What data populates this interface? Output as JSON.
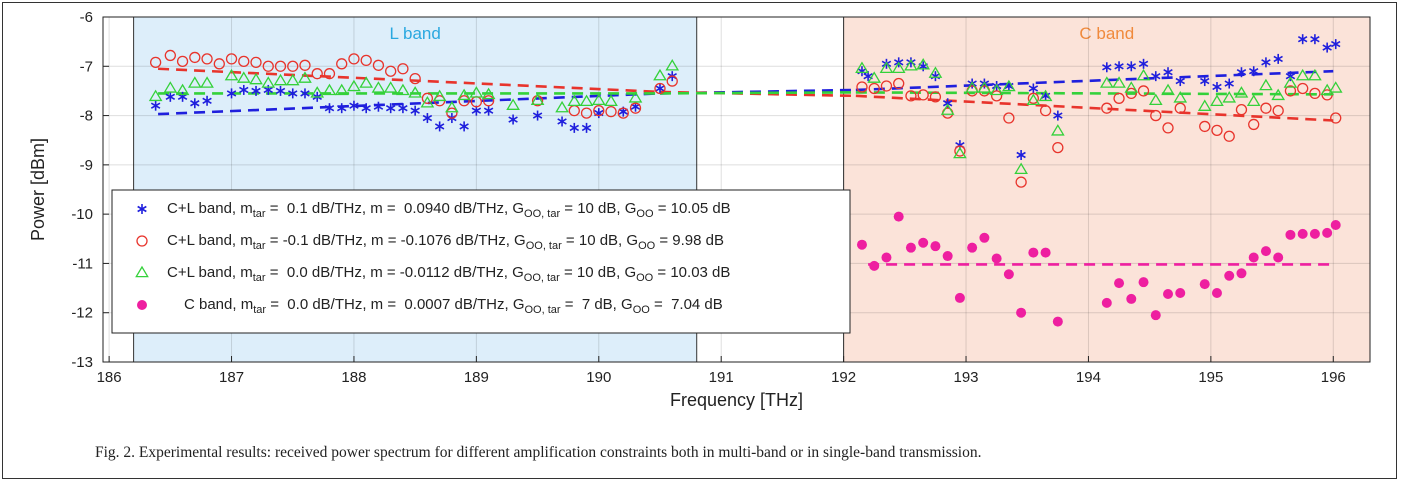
{
  "caption": "Fig. 2. Experimental results: received power spectrum for different amplification constraints both in multi-band or in single-band transmission.",
  "chart_data": {
    "type": "scatter",
    "xlabel": "Frequency [THz]",
    "ylabel": "Power [dBm]",
    "xlim": [
      185.95,
      196.3
    ],
    "ylim": [
      -13,
      -6
    ],
    "xticks": [
      186,
      187,
      188,
      189,
      190,
      191,
      192,
      193,
      194,
      195,
      196
    ],
    "yticks": [
      -13,
      -12,
      -11,
      -10,
      -9,
      -8,
      -7,
      -6
    ],
    "grid": true,
    "legend_position": "center-left",
    "colors": {
      "blue": "#1f1fdd",
      "red": "#e8342c",
      "green": "#34d13a",
      "magenta": "#ee1fa0",
      "l_band_fill": "#ddeefa",
      "c_band_fill": "#fbe3d9"
    },
    "bands": [
      {
        "label": "L band",
        "x": [
          186.2,
          190.8
        ],
        "color": "#2aa8e0"
      },
      {
        "label": "C band",
        "x": [
          192.0,
          196.3
        ],
        "color": "#f08a3c"
      }
    ],
    "series": [
      {
        "legend": [
          "C+L band, m",
          "tar",
          " =  0.1 dB/THz, m =  0.0940 dB/THz, G",
          "OO, tar",
          " = 10 dB, G",
          "OO",
          " = 10.05 dB"
        ],
        "marker": "asterisk",
        "color": "#1f1fdd",
        "fit": [
          [
            186.4,
            -7.97
          ],
          [
            190.5,
            -7.55
          ],
          [
            192.1,
            -7.48
          ],
          [
            196.0,
            -7.1
          ]
        ],
        "points": [
          [
            186.38,
            -7.8
          ],
          [
            186.5,
            -7.62
          ],
          [
            186.6,
            -7.62
          ],
          [
            186.7,
            -7.75
          ],
          [
            186.8,
            -7.7
          ],
          [
            187.0,
            -7.55
          ],
          [
            187.1,
            -7.48
          ],
          [
            187.2,
            -7.5
          ],
          [
            187.3,
            -7.48
          ],
          [
            187.4,
            -7.5
          ],
          [
            187.5,
            -7.55
          ],
          [
            187.6,
            -7.55
          ],
          [
            187.7,
            -7.62
          ],
          [
            187.8,
            -7.85
          ],
          [
            187.9,
            -7.85
          ],
          [
            188.0,
            -7.8
          ],
          [
            188.1,
            -7.85
          ],
          [
            188.2,
            -7.82
          ],
          [
            188.3,
            -7.85
          ],
          [
            188.4,
            -7.85
          ],
          [
            188.5,
            -7.9
          ],
          [
            188.6,
            -8.05
          ],
          [
            188.7,
            -8.22
          ],
          [
            188.8,
            -8.05
          ],
          [
            188.9,
            -8.22
          ],
          [
            189.0,
            -7.9
          ],
          [
            189.1,
            -7.9
          ],
          [
            189.3,
            -8.08
          ],
          [
            189.5,
            -8.0
          ],
          [
            189.7,
            -8.12
          ],
          [
            189.8,
            -8.25
          ],
          [
            189.9,
            -8.25
          ],
          [
            190.0,
            -7.95
          ],
          [
            190.2,
            -7.92
          ],
          [
            190.3,
            -7.82
          ],
          [
            190.5,
            -7.45
          ],
          [
            190.6,
            -7.2
          ],
          [
            192.15,
            -7.1
          ],
          [
            192.2,
            -7.2
          ],
          [
            192.35,
            -6.95
          ],
          [
            192.45,
            -6.92
          ],
          [
            192.55,
            -6.92
          ],
          [
            192.65,
            -7.0
          ],
          [
            192.75,
            -7.2
          ],
          [
            192.85,
            -7.75
          ],
          [
            192.95,
            -8.6
          ],
          [
            193.05,
            -7.35
          ],
          [
            193.15,
            -7.35
          ],
          [
            193.25,
            -7.4
          ],
          [
            193.35,
            -7.4
          ],
          [
            193.45,
            -8.8
          ],
          [
            193.55,
            -7.45
          ],
          [
            193.65,
            -7.6
          ],
          [
            193.75,
            -8.0
          ],
          [
            194.15,
            -7.02
          ],
          [
            194.25,
            -7.0
          ],
          [
            194.35,
            -7.0
          ],
          [
            194.45,
            -6.95
          ],
          [
            194.55,
            -7.2
          ],
          [
            194.65,
            -7.12
          ],
          [
            194.75,
            -7.3
          ],
          [
            194.95,
            -7.3
          ],
          [
            195.05,
            -7.42
          ],
          [
            195.15,
            -7.35
          ],
          [
            195.25,
            -7.12
          ],
          [
            195.35,
            -7.1
          ],
          [
            195.45,
            -6.92
          ],
          [
            195.55,
            -6.85
          ],
          [
            195.65,
            -7.2
          ],
          [
            195.75,
            -6.45
          ],
          [
            195.85,
            -6.45
          ],
          [
            195.95,
            -6.62
          ],
          [
            196.02,
            -6.55
          ]
        ]
      },
      {
        "legend": [
          "C+L band, m",
          "tar",
          " = -0.1 dB/THz, m = -0.1076 dB/THz, G",
          "OO, tar",
          " = 10 dB, G",
          "OO",
          " = 9.98 dB"
        ],
        "marker": "circle",
        "color": "#e8342c",
        "fit": [
          [
            186.4,
            -7.05
          ],
          [
            190.5,
            -7.52
          ],
          [
            192.1,
            -7.6
          ],
          [
            196.0,
            -8.1
          ]
        ],
        "points": [
          [
            186.38,
            -6.92
          ],
          [
            186.5,
            -6.78
          ],
          [
            186.6,
            -6.9
          ],
          [
            186.7,
            -6.82
          ],
          [
            186.8,
            -6.85
          ],
          [
            186.9,
            -6.95
          ],
          [
            187.0,
            -6.85
          ],
          [
            187.1,
            -6.9
          ],
          [
            187.2,
            -6.92
          ],
          [
            187.3,
            -7.0
          ],
          [
            187.4,
            -7.0
          ],
          [
            187.5,
            -7.0
          ],
          [
            187.6,
            -6.98
          ],
          [
            187.7,
            -7.15
          ],
          [
            187.8,
            -7.15
          ],
          [
            187.9,
            -6.95
          ],
          [
            188.0,
            -6.85
          ],
          [
            188.1,
            -6.88
          ],
          [
            188.2,
            -6.98
          ],
          [
            188.3,
            -7.1
          ],
          [
            188.4,
            -7.05
          ],
          [
            188.5,
            -7.25
          ],
          [
            188.6,
            -7.65
          ],
          [
            188.7,
            -7.7
          ],
          [
            188.8,
            -7.95
          ],
          [
            188.9,
            -7.7
          ],
          [
            189.0,
            -7.72
          ],
          [
            189.1,
            -7.7
          ],
          [
            189.5,
            -7.7
          ],
          [
            189.8,
            -7.9
          ],
          [
            189.9,
            -7.95
          ],
          [
            190.0,
            -7.9
          ],
          [
            190.1,
            -7.92
          ],
          [
            190.2,
            -7.95
          ],
          [
            190.3,
            -7.85
          ],
          [
            190.5,
            -7.45
          ],
          [
            190.6,
            -7.3
          ],
          [
            192.15,
            -7.42
          ],
          [
            192.25,
            -7.45
          ],
          [
            192.35,
            -7.4
          ],
          [
            192.45,
            -7.35
          ],
          [
            192.55,
            -7.6
          ],
          [
            192.65,
            -7.58
          ],
          [
            192.75,
            -7.62
          ],
          [
            192.85,
            -7.95
          ],
          [
            192.95,
            -8.72
          ],
          [
            193.05,
            -7.5
          ],
          [
            193.15,
            -7.5
          ],
          [
            193.25,
            -7.6
          ],
          [
            193.35,
            -8.05
          ],
          [
            193.45,
            -9.35
          ],
          [
            193.55,
            -7.65
          ],
          [
            193.65,
            -7.9
          ],
          [
            193.75,
            -8.65
          ],
          [
            194.15,
            -7.85
          ],
          [
            194.25,
            -7.65
          ],
          [
            194.35,
            -7.55
          ],
          [
            194.45,
            -7.5
          ],
          [
            194.55,
            -8.0
          ],
          [
            194.65,
            -8.25
          ],
          [
            194.75,
            -7.85
          ],
          [
            194.95,
            -8.22
          ],
          [
            195.05,
            -8.3
          ],
          [
            195.15,
            -8.42
          ],
          [
            195.25,
            -7.88
          ],
          [
            195.35,
            -8.18
          ],
          [
            195.45,
            -7.85
          ],
          [
            195.55,
            -7.9
          ],
          [
            195.65,
            -7.5
          ],
          [
            195.75,
            -7.45
          ],
          [
            195.85,
            -7.55
          ],
          [
            195.95,
            -7.58
          ],
          [
            196.02,
            -8.05
          ]
        ]
      },
      {
        "legend": [
          "C+L band, m",
          "tar",
          " =  0.0 dB/THz, m = -0.0112 dB/THz, G",
          "OO, tar",
          " = 10 dB, G",
          "OO",
          " = 10.03 dB"
        ],
        "marker": "triangle",
        "color": "#34d13a",
        "fit": [
          [
            186.4,
            -7.55
          ],
          [
            190.5,
            -7.55
          ],
          [
            192.1,
            -7.53
          ],
          [
            196.0,
            -7.57
          ]
        ],
        "points": [
          [
            186.38,
            -7.62
          ],
          [
            186.5,
            -7.45
          ],
          [
            186.6,
            -7.5
          ],
          [
            186.7,
            -7.35
          ],
          [
            186.8,
            -7.35
          ],
          [
            187.0,
            -7.2
          ],
          [
            187.1,
            -7.25
          ],
          [
            187.2,
            -7.28
          ],
          [
            187.3,
            -7.35
          ],
          [
            187.4,
            -7.3
          ],
          [
            187.5,
            -7.3
          ],
          [
            187.6,
            -7.25
          ],
          [
            187.7,
            -7.55
          ],
          [
            187.8,
            -7.5
          ],
          [
            187.9,
            -7.5
          ],
          [
            188.0,
            -7.42
          ],
          [
            188.1,
            -7.35
          ],
          [
            188.2,
            -7.45
          ],
          [
            188.3,
            -7.45
          ],
          [
            188.4,
            -7.5
          ],
          [
            188.5,
            -7.55
          ],
          [
            188.6,
            -7.75
          ],
          [
            188.7,
            -7.62
          ],
          [
            188.8,
            -7.85
          ],
          [
            188.9,
            -7.6
          ],
          [
            189.0,
            -7.55
          ],
          [
            189.1,
            -7.58
          ],
          [
            189.3,
            -7.8
          ],
          [
            189.5,
            -7.7
          ],
          [
            189.7,
            -7.85
          ],
          [
            189.8,
            -7.72
          ],
          [
            189.9,
            -7.72
          ],
          [
            190.0,
            -7.7
          ],
          [
            190.1,
            -7.72
          ],
          [
            190.3,
            -7.65
          ],
          [
            190.5,
            -7.2
          ],
          [
            190.6,
            -7.0
          ],
          [
            192.15,
            -7.05
          ],
          [
            192.25,
            -7.25
          ],
          [
            192.35,
            -7.05
          ],
          [
            192.45,
            -7.05
          ],
          [
            192.55,
            -7.0
          ],
          [
            192.65,
            -6.98
          ],
          [
            192.75,
            -7.15
          ],
          [
            192.85,
            -7.9
          ],
          [
            192.95,
            -8.78
          ],
          [
            193.05,
            -7.45
          ],
          [
            193.15,
            -7.45
          ],
          [
            193.25,
            -7.5
          ],
          [
            193.35,
            -7.42
          ],
          [
            193.45,
            -9.1
          ],
          [
            193.55,
            -7.7
          ],
          [
            193.65,
            -7.62
          ],
          [
            193.75,
            -8.32
          ],
          [
            194.15,
            -7.35
          ],
          [
            194.25,
            -7.35
          ],
          [
            194.35,
            -7.45
          ],
          [
            194.45,
            -7.2
          ],
          [
            194.55,
            -7.7
          ],
          [
            194.65,
            -7.5
          ],
          [
            194.75,
            -7.65
          ],
          [
            194.95,
            -7.82
          ],
          [
            195.05,
            -7.72
          ],
          [
            195.15,
            -7.65
          ],
          [
            195.25,
            -7.55
          ],
          [
            195.35,
            -7.72
          ],
          [
            195.45,
            -7.4
          ],
          [
            195.55,
            -7.6
          ],
          [
            195.65,
            -7.35
          ],
          [
            195.75,
            -7.2
          ],
          [
            195.85,
            -7.2
          ],
          [
            195.95,
            -7.5
          ],
          [
            196.02,
            -7.45
          ]
        ]
      },
      {
        "legend": [
          "C band, m",
          "tar",
          " =  0.0 dB/THz, m =  0.0007 dB/THz, G",
          "OO, tar",
          " =  7 dB, G",
          "OO",
          " =  7.04 dB"
        ],
        "marker": "dot",
        "color": "#ee1fa0",
        "fit": [
          [
            192.2,
            -11.02
          ],
          [
            196.0,
            -11.02
          ]
        ],
        "points": [
          [
            192.15,
            -10.62
          ],
          [
            192.25,
            -11.05
          ],
          [
            192.35,
            -10.88
          ],
          [
            192.45,
            -10.05
          ],
          [
            192.55,
            -10.68
          ],
          [
            192.65,
            -10.58
          ],
          [
            192.75,
            -10.65
          ],
          [
            192.85,
            -10.85
          ],
          [
            192.95,
            -11.7
          ],
          [
            193.05,
            -10.68
          ],
          [
            193.15,
            -10.48
          ],
          [
            193.25,
            -10.9
          ],
          [
            193.35,
            -11.22
          ],
          [
            193.45,
            -12.0
          ],
          [
            193.55,
            -10.78
          ],
          [
            193.65,
            -10.78
          ],
          [
            193.75,
            -12.18
          ],
          [
            194.15,
            -11.8
          ],
          [
            194.25,
            -11.4
          ],
          [
            194.35,
            -11.72
          ],
          [
            194.45,
            -11.38
          ],
          [
            194.55,
            -12.05
          ],
          [
            194.65,
            -11.62
          ],
          [
            194.75,
            -11.6
          ],
          [
            194.95,
            -11.42
          ],
          [
            195.05,
            -11.6
          ],
          [
            195.15,
            -11.25
          ],
          [
            195.25,
            -11.2
          ],
          [
            195.35,
            -10.88
          ],
          [
            195.45,
            -10.75
          ],
          [
            195.55,
            -10.88
          ],
          [
            195.65,
            -10.42
          ],
          [
            195.75,
            -10.4
          ],
          [
            195.85,
            -10.4
          ],
          [
            195.95,
            -10.38
          ],
          [
            196.02,
            -10.22
          ]
        ]
      }
    ]
  }
}
